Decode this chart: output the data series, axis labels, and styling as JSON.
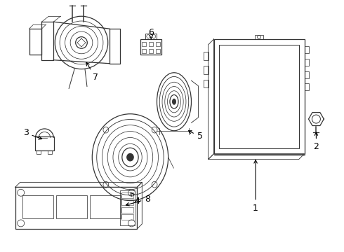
{
  "title": "",
  "background_color": "#ffffff",
  "line_color": "#333333",
  "line_width": 0.9,
  "figsize": [
    4.9,
    3.6
  ],
  "dpi": 100,
  "label_fontsize": 9
}
